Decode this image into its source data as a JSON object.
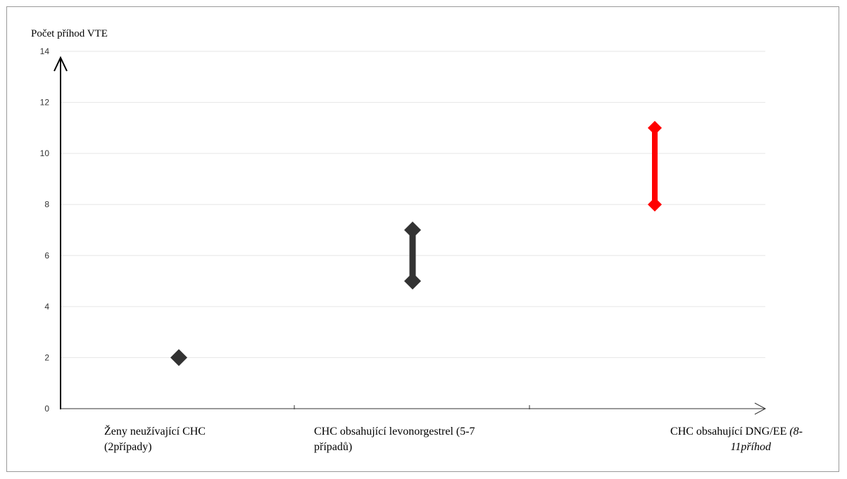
{
  "chart_data": {
    "type": "range",
    "ylabel": "Počet příhod VTE",
    "ylim": [
      0,
      14
    ],
    "yticks": [
      "0",
      "2",
      "4",
      "6",
      "8",
      "10",
      "12",
      "14"
    ],
    "grid": true,
    "categories": [
      {
        "line1": "Ženy neužívající CHC",
        "line2": "(2případy)",
        "align": "left"
      },
      {
        "line1": "CHC obsahující levonorgestrel (5-7",
        "line2": "případů)",
        "align": "left"
      },
      {
        "line1_normal": "CHC obsahující DNG/EE ",
        "line1_italic": "(8-",
        "line2_italic": "11příhod",
        "align": "right"
      }
    ],
    "series": [
      {
        "low": 2,
        "high": 2,
        "color": "#333333"
      },
      {
        "low": 5,
        "high": 7,
        "color": "#333333"
      },
      {
        "low": 8,
        "high": 11,
        "color": "#ff0000"
      }
    ]
  }
}
